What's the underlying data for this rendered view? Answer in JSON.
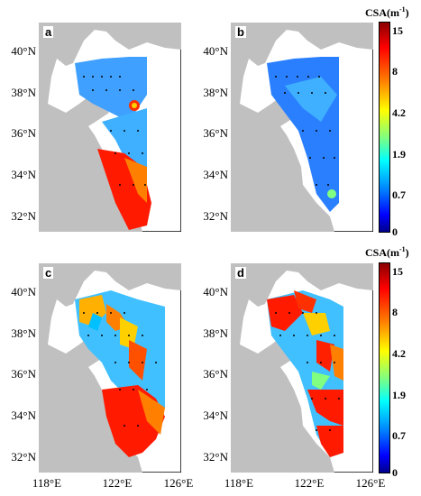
{
  "panels": [
    {
      "id": "a",
      "label": "a",
      "theme": "low-high-south"
    },
    {
      "id": "b",
      "label": "b",
      "theme": "low"
    },
    {
      "id": "c",
      "label": "c",
      "theme": "mixed"
    },
    {
      "id": "d",
      "label": "d",
      "theme": "high"
    }
  ],
  "lat_labels": [
    "40°N",
    "38°N",
    "36°N",
    "34°N",
    "32°N"
  ],
  "lon_labels": [
    "118°E",
    "122°E",
    "126°E"
  ],
  "colorbar": {
    "title": "CSA(m",
    "title_sup": "-1",
    "title_close": ")",
    "ticks": [
      "15",
      "8",
      "4.2",
      "1.9",
      "0.7",
      "0"
    ],
    "colors": [
      "#8b0000",
      "#ff0000",
      "#ff8000",
      "#ffff00",
      "#80ff80",
      "#00ffff",
      "#0080ff",
      "#0000ff",
      "#00008b"
    ]
  },
  "colors": {
    "land": "#c0c0c0",
    "sea": "#ffffff",
    "frame": "#000000"
  }
}
